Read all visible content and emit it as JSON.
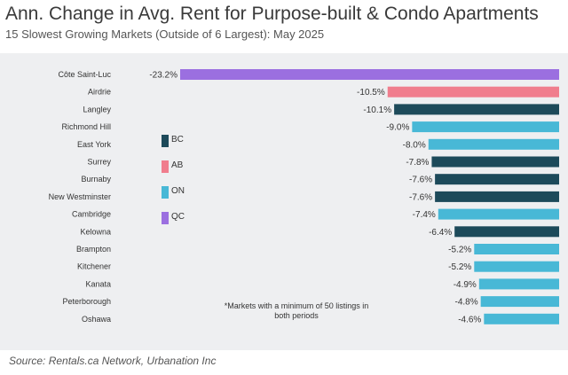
{
  "header": {
    "title": "Ann. Change in Avg. Rent for Purpose-built & Condo Apartments",
    "subtitle": "15 Slowest Growing Markets (Outside of 6 Largest): May 2025"
  },
  "footer": {
    "source": "Source: Rentals.ca Network, Urbanation Inc"
  },
  "colors": {
    "BC": "#1d4a5a",
    "AB": "#f07d8d",
    "ON": "#48b8d6",
    "QC": "#9b6fe0",
    "panel": "#eeeff1"
  },
  "chart_data": {
    "type": "bar",
    "orientation": "horizontal",
    "title": "Ann. Change in Avg. Rent for Purpose-built & Condo Apartments",
    "subtitle": "15 Slowest Growing Markets (Outside of 6 Largest): May 2025",
    "xlabel": "",
    "ylabel": "",
    "xlim": [
      -23.2,
      0
    ],
    "categories": [
      "Côte Saint-Luc",
      "Airdrie",
      "Langley",
      "Richmond Hill",
      "East York",
      "Surrey",
      "Burnaby",
      "New Westminster",
      "Cambridge",
      "Kelowna",
      "Brampton",
      "Kitchener",
      "Kanata",
      "Peterborough",
      "Oshawa"
    ],
    "values": [
      -23.2,
      -10.5,
      -10.1,
      -9.0,
      -8.0,
      -7.8,
      -7.6,
      -7.6,
      -7.4,
      -6.4,
      -5.2,
      -5.2,
      -4.9,
      -4.8,
      -4.6
    ],
    "value_labels": [
      "-23.2%",
      "-10.5%",
      "-10.1%",
      "-9.0%",
      "-8.0%",
      "-7.8%",
      "-7.6%",
      "-7.6%",
      "-7.4%",
      "-6.4%",
      "-5.2%",
      "-5.2%",
      "-4.9%",
      "-4.8%",
      "-4.6%"
    ],
    "provinces": [
      "QC",
      "AB",
      "BC",
      "ON",
      "ON",
      "BC",
      "BC",
      "BC",
      "ON",
      "BC",
      "ON",
      "ON",
      "ON",
      "ON",
      "ON"
    ],
    "legend": [
      "BC",
      "AB",
      "ON",
      "QC"
    ],
    "note": [
      "*Markets with a minimum of 50 listings in",
      "both periods"
    ],
    "grid": false
  }
}
